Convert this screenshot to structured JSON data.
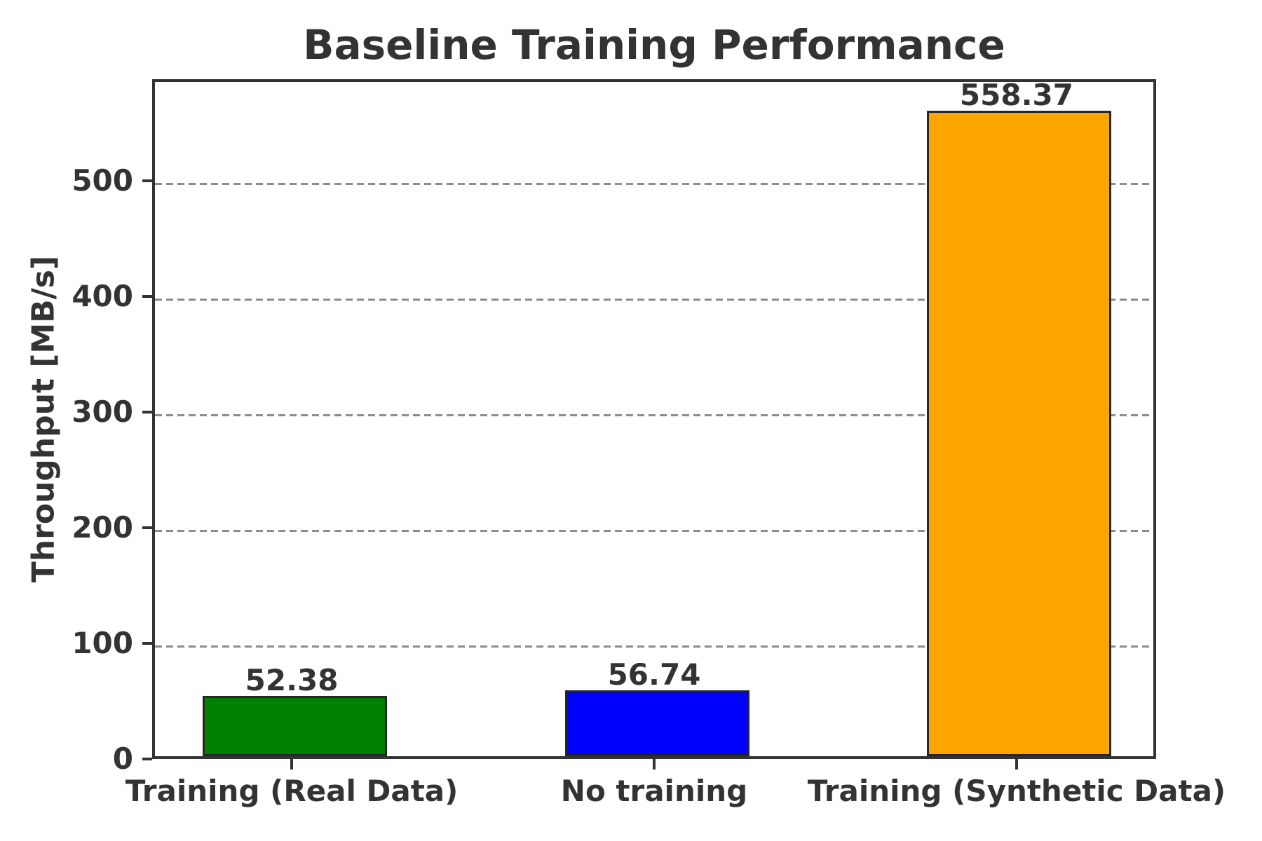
{
  "chart_data": {
    "type": "bar",
    "title": "Baseline Training Performance",
    "ylabel": "Throughput [MB/s]",
    "xlabel": "",
    "categories": [
      "Training (Real Data)",
      "No training",
      "Training (Synthetic Data)"
    ],
    "values": [
      52.38,
      56.74,
      558.37
    ],
    "bar_labels": [
      "52.38",
      "56.74",
      "558.37"
    ],
    "bar_colors": [
      "#008000",
      "#0000ff",
      "#ffa500"
    ],
    "yticks": [
      0,
      100,
      200,
      300,
      400,
      500
    ],
    "ylim": [
      0,
      588
    ],
    "grid": "horizontal dashed gridlines at y ticks (except 0)",
    "legend": "none"
  },
  "style": {
    "text_color": "#333333",
    "frame_color": "#333333",
    "grid_color": "#8c8c8c",
    "bar_edge_color": "#262626",
    "background": "#ffffff"
  }
}
